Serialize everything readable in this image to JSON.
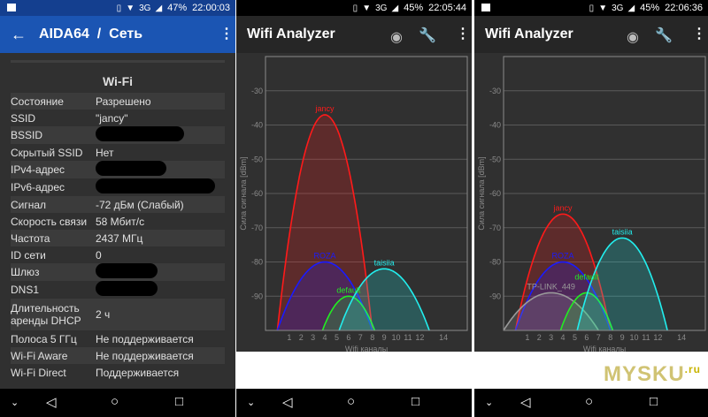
{
  "aida": {
    "status": {
      "battery": "47%",
      "time": "22:00:03",
      "net": "3G"
    },
    "title": "AIDA64  /  Сеть",
    "section": "Wi-Fi",
    "rows": [
      {
        "k": "Состояние",
        "v": "Разрешено"
      },
      {
        "k": "SSID",
        "v": "\"jancy\""
      },
      {
        "k": "BSSID",
        "v": "",
        "redacted": true
      },
      {
        "k": "Скрытый SSID",
        "v": "Нет"
      },
      {
        "k": "IPv4-адрес",
        "v": "",
        "redacted": true
      },
      {
        "k": "IPv6-адрес",
        "v": "",
        "redacted": true
      },
      {
        "k": "Сигнал",
        "v": "-72 дБм (Слабый)"
      },
      {
        "k": "Скорость связи",
        "v": "58 Мбит/с"
      },
      {
        "k": "Частота",
        "v": "2437 МГц"
      },
      {
        "k": "ID сети",
        "v": "0"
      },
      {
        "k": "Шлюз",
        "v": "",
        "redacted": true
      },
      {
        "k": "DNS1",
        "v": "",
        "redacted": true
      },
      {
        "k": "Длительность аренды DHCP",
        "v": "2 ч"
      },
      {
        "k": "Полоса 5 ГГц",
        "v": "Не поддерживается"
      },
      {
        "k": "Wi-Fi Aware",
        "v": "Не поддерживается"
      },
      {
        "k": "Wi-Fi Direct",
        "v": "Поддерживается"
      }
    ]
  },
  "analyzer1": {
    "status": {
      "battery": "45%",
      "time": "22:05:44",
      "net": "3G"
    },
    "title": "Wifi Analyzer"
  },
  "analyzer2": {
    "status": {
      "battery": "45%",
      "time": "22:06:36",
      "net": "3G"
    },
    "title": "Wifi Analyzer"
  },
  "watermark": "MYSKU",
  "watermark_suffix": ".ru",
  "chart_data": [
    {
      "type": "area",
      "xlabel": "Wifi каналы",
      "ylabel": "Сила сигнала [dBm]",
      "xlim": [
        -1,
        16
      ],
      "ylim": [
        -100,
        -20
      ],
      "xticks": [
        1,
        2,
        3,
        4,
        5,
        6,
        7,
        8,
        9,
        10,
        11,
        12,
        14
      ],
      "yticks": [
        -30,
        -40,
        -50,
        -60,
        -70,
        -80,
        -90
      ],
      "grid": true,
      "series": [
        {
          "name": "jancy",
          "channel": 4,
          "dbm": -37,
          "half_width": 4,
          "color": "#ff1a1a"
        },
        {
          "name": "ROZA",
          "channel": 4,
          "dbm": -80,
          "half_width": 4,
          "color": "#1a1aff"
        },
        {
          "name": "default",
          "channel": 6,
          "dbm": -90,
          "half_width": 2.2,
          "color": "#22ee22"
        },
        {
          "name": "taisiia",
          "channel": 9,
          "dbm": -82,
          "half_width": 3.8,
          "color": "#22eeee"
        }
      ]
    },
    {
      "type": "area",
      "xlabel": "Wifi каналы",
      "ylabel": "Сила сигнала [dBm]",
      "xlim": [
        -1,
        16
      ],
      "ylim": [
        -100,
        -20
      ],
      "xticks": [
        1,
        2,
        3,
        4,
        5,
        6,
        7,
        8,
        9,
        10,
        11,
        12,
        14
      ],
      "yticks": [
        -30,
        -40,
        -50,
        -60,
        -70,
        -80,
        -90
      ],
      "grid": true,
      "series": [
        {
          "name": "jancy",
          "channel": 4,
          "dbm": -66,
          "half_width": 4,
          "color": "#ff1a1a"
        },
        {
          "name": "ROZA",
          "channel": 4,
          "dbm": -80,
          "half_width": 4,
          "color": "#1a1aff"
        },
        {
          "name": "TP-LINK_449",
          "channel": 3,
          "dbm": -89,
          "half_width": 4,
          "color": "#9a9a9a"
        },
        {
          "name": "default",
          "channel": 6,
          "dbm": -89,
          "half_width": 2.2,
          "color": "#22ee22"
        },
        {
          "name": "taisiia",
          "channel": 9,
          "dbm": -73,
          "half_width": 3.8,
          "color": "#22eeee"
        }
      ]
    }
  ]
}
